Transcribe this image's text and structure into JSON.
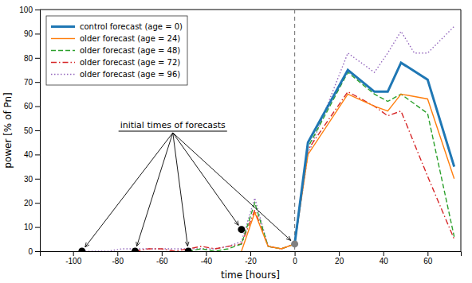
{
  "chart_data": {
    "type": "line",
    "xlabel": "time [hours]",
    "ylabel": "power [% of Pn]",
    "xlim": [
      -115,
      75
    ],
    "ylim": [
      0,
      100
    ],
    "xticks": [
      -100,
      -80,
      -60,
      -40,
      -20,
      0,
      20,
      40,
      60
    ],
    "yticks": [
      0,
      10,
      20,
      30,
      40,
      50,
      60,
      70,
      80,
      90,
      100
    ],
    "legend": "upper left",
    "vlines": [
      0
    ],
    "series": [
      {
        "name": "control forecast (age = 0)",
        "line_style": "solid",
        "x": [
          0,
          6,
          24,
          36,
          42,
          48,
          60,
          72
        ],
        "values": [
          3,
          45,
          75,
          66,
          66,
          78,
          71,
          35
        ]
      },
      {
        "name": "older forecast (age = 24)",
        "line_style": "solid",
        "x": [
          -24,
          -18,
          -12,
          -6,
          0,
          6,
          24,
          36,
          42,
          48,
          60,
          72
        ],
        "values": [
          0,
          16,
          2,
          1,
          3,
          40,
          65,
          60,
          58,
          65,
          63,
          30
        ]
      },
      {
        "name": "older forecast (age = 48)",
        "line_style": "dashed",
        "x": [
          -48,
          -42,
          -36,
          -30,
          -24,
          -18,
          -12,
          -6,
          0,
          6,
          24,
          36,
          42,
          48,
          60,
          72
        ],
        "values": [
          0,
          1,
          0,
          1,
          3,
          20,
          2,
          1,
          3,
          43,
          74,
          65,
          62,
          65,
          57,
          6
        ]
      },
      {
        "name": "older forecast (age = 72)",
        "line_style": "dashdot",
        "x": [
          -72,
          -66,
          -60,
          -54,
          -48,
          -42,
          -36,
          -30,
          -24,
          -18,
          -12,
          -6,
          0,
          6,
          24,
          36,
          42,
          48,
          60,
          72
        ],
        "values": [
          0,
          1,
          1,
          0,
          1,
          2,
          1,
          2,
          3,
          17,
          2,
          1,
          3,
          42,
          66,
          60,
          56,
          58,
          31,
          5
        ]
      },
      {
        "name": "older forecast (age = 96)",
        "line_style": "dotted",
        "x": [
          -96,
          -90,
          -84,
          -78,
          -72,
          -66,
          -60,
          -54,
          -48,
          -42,
          -36,
          -30,
          -24,
          -18,
          -12,
          -6,
          0,
          6,
          24,
          36,
          42,
          48,
          54,
          60,
          72
        ],
        "values": [
          0,
          0,
          0,
          1,
          1,
          1,
          1,
          1,
          1,
          1,
          1,
          2,
          4,
          22,
          2,
          1,
          3,
          40,
          82,
          74,
          82,
          91,
          82,
          82,
          93
        ]
      }
    ],
    "points": {
      "x": [
        -96,
        -72,
        -48,
        -24,
        0
      ],
      "y": [
        0,
        0,
        0,
        9,
        3
      ],
      "colors": [
        "black",
        "black",
        "black",
        "black",
        "gray"
      ]
    },
    "annotations": [
      {
        "text": "initial times of forecasts",
        "x": -55,
        "y": 50
      }
    ]
  }
}
